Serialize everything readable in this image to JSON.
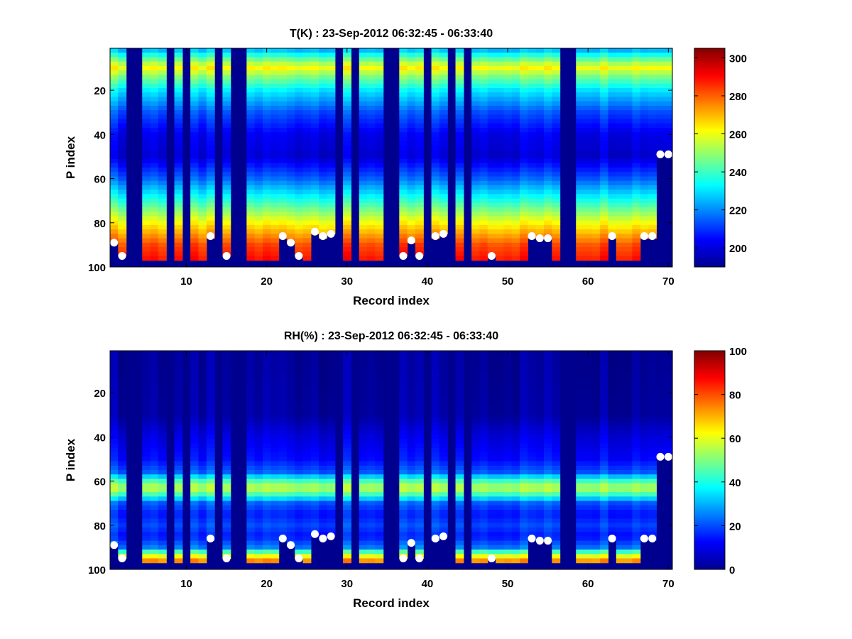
{
  "chart_data": [
    {
      "type": "heatmap",
      "title": "T(K) : 23-Sep-2012 06:32:45 - 06:33:40",
      "xlabel": "Record index",
      "ylabel": "P index",
      "xlim": [
        0.5,
        70.5
      ],
      "ylim": [
        1,
        100
      ],
      "y_reversed": true,
      "x_ticks": [
        "10",
        "20",
        "30",
        "40",
        "50",
        "60",
        "70"
      ],
      "y_ticks": [
        "20",
        "40",
        "60",
        "80",
        "100"
      ],
      "colormap": "jet",
      "colorbar": {
        "min": 190,
        "max": 305,
        "ticks": [
          "200",
          "220",
          "240",
          "260",
          "280",
          "300"
        ]
      },
      "profile": {
        "p": [
          1,
          8,
          10,
          14,
          20,
          30,
          40,
          50,
          60,
          70,
          80,
          90,
          97
        ],
        "value": [
          222,
          255,
          262,
          248,
          232,
          214,
          203,
          200,
          216,
          238,
          262,
          283,
          290
        ]
      },
      "surface_dot_color": "#ffffff",
      "surface_points": {
        "x": [
          1,
          2,
          13,
          15,
          22,
          23,
          24,
          26,
          27,
          28,
          37,
          38,
          39,
          41,
          42,
          48,
          53,
          54,
          55,
          63,
          67,
          68,
          69,
          70
        ],
        "p": [
          89,
          95,
          86,
          95,
          86,
          89,
          95,
          84,
          86,
          85,
          95,
          88,
          95,
          86,
          85,
          95,
          86,
          87,
          87,
          86,
          86,
          86,
          49,
          49
        ]
      },
      "missing_records": [
        3,
        4,
        8,
        10,
        14,
        16,
        17,
        29,
        31,
        35,
        36,
        40,
        43,
        45,
        57,
        58
      ]
    },
    {
      "type": "heatmap",
      "title": "RH(%) : 23-Sep-2012 06:32:45 - 06:33:40",
      "xlabel": "Record index",
      "ylabel": "P index",
      "xlim": [
        0.5,
        70.5
      ],
      "ylim": [
        1,
        100
      ],
      "y_reversed": true,
      "x_ticks": [
        "10",
        "20",
        "30",
        "40",
        "50",
        "60",
        "70"
      ],
      "y_ticks": [
        "20",
        "40",
        "60",
        "80",
        "100"
      ],
      "colormap": "jet",
      "colorbar": {
        "min": 0,
        "max": 100,
        "ticks": [
          "0",
          "20",
          "40",
          "60",
          "80",
          "100"
        ]
      },
      "profile": {
        "p": [
          1,
          30,
          40,
          50,
          56,
          60,
          63,
          66,
          70,
          75,
          80,
          85,
          90,
          93,
          97
        ],
        "value": [
          3,
          4,
          10,
          14,
          22,
          45,
          58,
          45,
          22,
          15,
          20,
          15,
          25,
          55,
          80
        ]
      },
      "surface_dot_color": "#ffffff",
      "surface_points": {
        "x": [
          1,
          2,
          13,
          15,
          22,
          23,
          24,
          26,
          27,
          28,
          37,
          38,
          39,
          41,
          42,
          48,
          53,
          54,
          55,
          63,
          67,
          68,
          69,
          70
        ],
        "p": [
          89,
          95,
          86,
          95,
          86,
          89,
          95,
          84,
          86,
          85,
          95,
          88,
          95,
          86,
          85,
          95,
          86,
          87,
          87,
          86,
          86,
          86,
          49,
          49
        ]
      },
      "missing_records": [
        3,
        4,
        8,
        10,
        14,
        16,
        17,
        29,
        31,
        35,
        36,
        40,
        43,
        45,
        57,
        58
      ]
    }
  ]
}
